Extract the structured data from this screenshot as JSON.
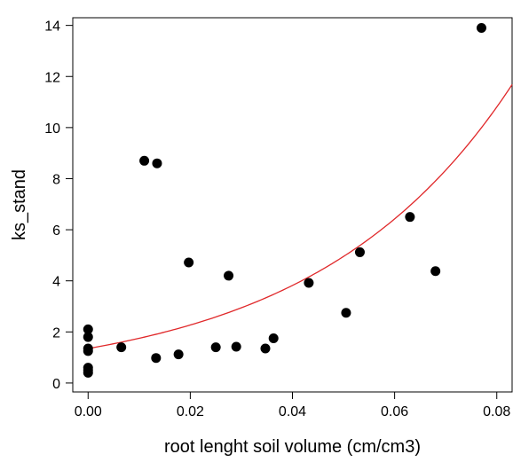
{
  "chart_data": {
    "type": "scatter",
    "xlabel": "root lenght soil volume (cm/cm3)",
    "ylabel": "ks_stand",
    "xlim": [
      -0.003,
      0.083
    ],
    "ylim": [
      -0.35,
      14.3
    ],
    "xticks": [
      0.0,
      0.02,
      0.04,
      0.06,
      0.08
    ],
    "xtick_labels": [
      "0.00",
      "0.02",
      "0.04",
      "0.06",
      "0.08"
    ],
    "yticks": [
      0,
      2,
      4,
      6,
      8,
      10,
      12,
      14
    ],
    "ytick_labels": [
      "0",
      "2",
      "4",
      "6",
      "8",
      "10",
      "12",
      "14"
    ],
    "grid": false,
    "box": "left-bottom-right-top",
    "points": [
      {
        "x": 0.0,
        "y": 2.1
      },
      {
        "x": 0.0,
        "y": 1.8
      },
      {
        "x": 0.0,
        "y": 1.35
      },
      {
        "x": 0.0,
        "y": 1.25
      },
      {
        "x": 0.0,
        "y": 0.6
      },
      {
        "x": 0.0,
        "y": 0.5
      },
      {
        "x": 0.0,
        "y": 0.4
      },
      {
        "x": 0.0065,
        "y": 1.4
      },
      {
        "x": 0.011,
        "y": 8.7
      },
      {
        "x": 0.0133,
        "y": 0.98
      },
      {
        "x": 0.0135,
        "y": 8.6
      },
      {
        "x": 0.0177,
        "y": 1.12
      },
      {
        "x": 0.0197,
        "y": 4.72
      },
      {
        "x": 0.025,
        "y": 1.4
      },
      {
        "x": 0.0275,
        "y": 4.2
      },
      {
        "x": 0.029,
        "y": 1.42
      },
      {
        "x": 0.0347,
        "y": 1.35
      },
      {
        "x": 0.0363,
        "y": 1.75
      },
      {
        "x": 0.0432,
        "y": 3.92
      },
      {
        "x": 0.0505,
        "y": 2.75
      },
      {
        "x": 0.0532,
        "y": 5.12
      },
      {
        "x": 0.063,
        "y": 6.5
      },
      {
        "x": 0.068,
        "y": 4.38
      },
      {
        "x": 0.077,
        "y": 13.9
      }
    ],
    "fit_curve": {
      "type": "exponential",
      "a": 1.35,
      "b": 26.0,
      "x_from": 0.0,
      "x_to": 0.083
    },
    "colors": {
      "points": "#000000",
      "fit_curve": "#e0282a",
      "axes": "#000000"
    }
  }
}
